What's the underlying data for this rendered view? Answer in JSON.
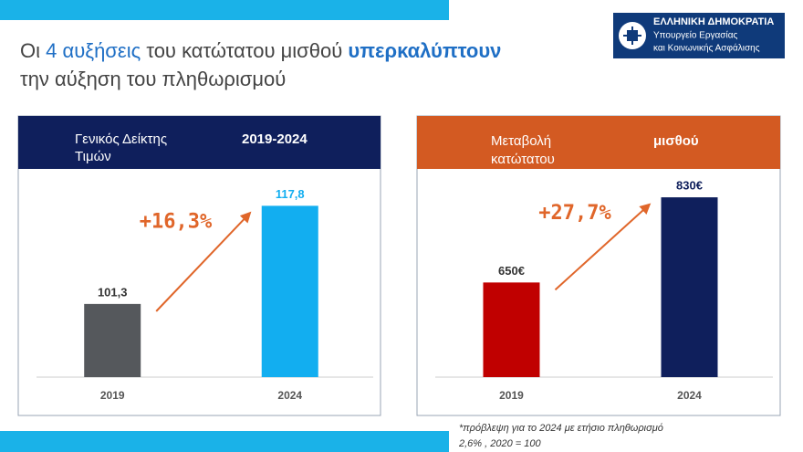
{
  "slide": {
    "title_line1": [
      "Οι",
      "4 αυξήσεις",
      "του κατώτατου μισθού",
      "υπερκαλύπτουν"
    ],
    "title_line2": "την αύξηση του πληθωρισμού",
    "logo": [
      "ΕΛΛΗΝΙΚΗ ΔΗΜΟΚΡΑΤΙΑ",
      "Υπουργείο Εργασίας",
      "και Κοινωνικής Ασφάλισης"
    ],
    "footnote": [
      "*πρόβλεψη για το 2024 με ετήσιο πληθωρισμό",
      "2,6% , 2020 = 100"
    ]
  },
  "chart_data": [
    {
      "type": "bar",
      "title_lines": [
        "Γενικός Δείκτης",
        "Τιμών"
      ],
      "subtitle": "2019-2024",
      "header_color": "#0f1f5c",
      "categories": [
        "2019",
        "2024"
      ],
      "values": [
        101.3,
        117.8
      ],
      "value_labels": [
        "101,3",
        "117,8"
      ],
      "colors": [
        "#55585c",
        "#12aef0"
      ],
      "annotation": "+16,3%",
      "ylim": [
        89,
        124
      ]
    },
    {
      "type": "bar",
      "title_lines": [
        "Μεταβολή",
        "κατώτατου"
      ],
      "subtitle": "μισθού",
      "header_color": "#d35a22",
      "categories": [
        "2019",
        "2024"
      ],
      "values": [
        650,
        830
      ],
      "value_labels": [
        "650€",
        "830€"
      ],
      "colors": [
        "#c00000",
        "#0f1f5c"
      ],
      "annotation": "+27,7%",
      "ylim": [
        450,
        890
      ]
    }
  ]
}
